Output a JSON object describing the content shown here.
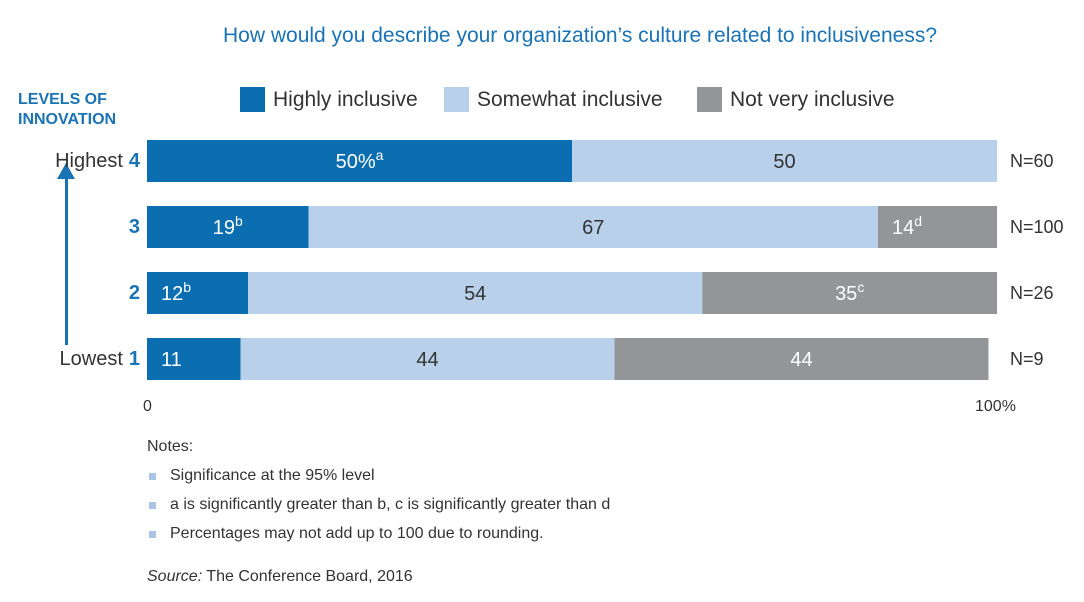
{
  "chart_data": {
    "type": "bar",
    "orientation": "horizontal",
    "stacked": true,
    "title": "How would you describe your organization’s culture related to inclusiveness?",
    "y_axis_title": [
      "LEVELS OF",
      "INNOVATION"
    ],
    "legend_placement": "top",
    "categories": [
      {
        "level": "4",
        "descriptor": "Highest",
        "n": "N=60"
      },
      {
        "level": "3",
        "descriptor": "",
        "n": "N=100"
      },
      {
        "level": "2",
        "descriptor": "",
        "n": "N=26"
      },
      {
        "level": "1",
        "descriptor": "Lowest",
        "n": "N=9"
      }
    ],
    "series": [
      {
        "name": "Highly inclusive",
        "color": "#0b6eb0",
        "text_color": "#ffffff",
        "values": [
          50,
          19,
          12,
          11
        ],
        "labels": [
          "50%",
          "19",
          "12",
          "11"
        ],
        "sup": [
          "a",
          "b",
          "b",
          ""
        ]
      },
      {
        "name": "Somewhat inclusive",
        "color": "#b8d0ea",
        "text_color": "#333333",
        "values": [
          50,
          67,
          54,
          44
        ],
        "labels": [
          "50",
          "67",
          "54",
          "44"
        ],
        "sup": [
          "",
          "",
          "",
          ""
        ]
      },
      {
        "name": "Not very inclusive",
        "color": "#939598",
        "text_color": "#ffffff",
        "values": [
          0,
          14,
          35,
          44
        ],
        "labels": [
          "",
          "14",
          "35",
          "44"
        ],
        "sup": [
          "",
          "d",
          "c",
          ""
        ]
      }
    ],
    "xlim": [
      0,
      100
    ],
    "x_tick_labels": [
      "0",
      "100%"
    ],
    "grid": false
  },
  "notes": {
    "title": "Notes:",
    "items": [
      "Significance at the 95% level",
      "a is significantly greater than b, c is significantly greater than d",
      "Percentages may not add up to 100 due to rounding."
    ]
  },
  "source": {
    "label": "Source:",
    "text": " The Conference Board, 2016"
  }
}
